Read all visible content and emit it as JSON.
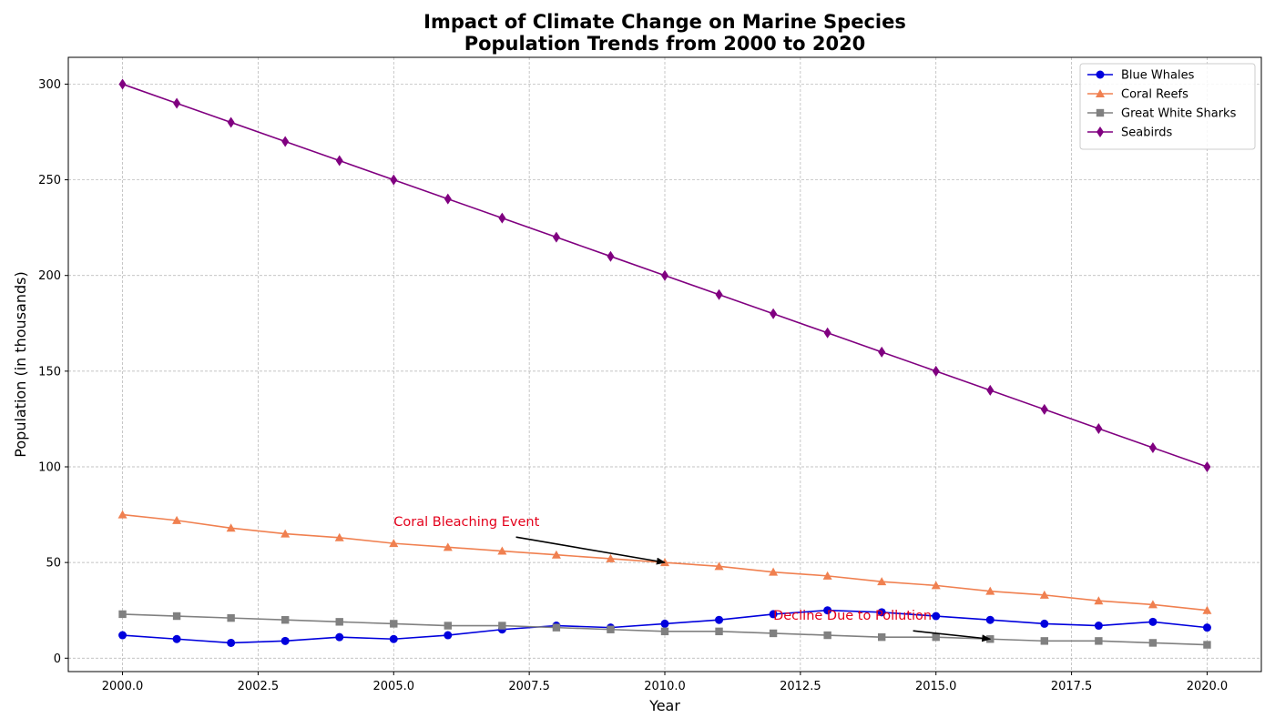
{
  "chart_data": {
    "type": "line",
    "title": "Impact of Climate Change on Marine Species\nPopulation Trends from 2000 to 2020",
    "xlabel": "Year",
    "ylabel": "Population (in thousands)",
    "xlim": [
      1999,
      2021
    ],
    "ylim": [
      -7,
      314
    ],
    "xticks": [
      2000,
      2002.5,
      2005,
      2007.5,
      2010,
      2012.5,
      2015,
      2017.5,
      2020
    ],
    "xtick_labels": [
      "2000.0",
      "2002.5",
      "2005.0",
      "2007.5",
      "2010.0",
      "2012.5",
      "2015.0",
      "2017.5",
      "2020.0"
    ],
    "yticks": [
      0,
      50,
      100,
      150,
      200,
      250,
      300
    ],
    "ytick_labels": [
      "0",
      "50",
      "100",
      "150",
      "200",
      "250",
      "300"
    ],
    "grid": true,
    "legend_position": "top-right",
    "x": [
      2000,
      2001,
      2002,
      2003,
      2004,
      2005,
      2006,
      2007,
      2008,
      2009,
      2010,
      2011,
      2012,
      2013,
      2014,
      2015,
      2016,
      2017,
      2018,
      2019,
      2020
    ],
    "series": [
      {
        "name": "Blue Whales",
        "color": "#0000dd",
        "marker": "circle",
        "values": [
          12,
          10,
          8,
          9,
          11,
          10,
          12,
          15,
          17,
          16,
          18,
          20,
          23,
          25,
          24,
          22,
          20,
          18,
          17,
          19,
          16
        ]
      },
      {
        "name": "Coral Reefs",
        "color": "#f08050",
        "marker": "triangle",
        "values": [
          75,
          72,
          68,
          65,
          63,
          60,
          58,
          56,
          54,
          52,
          50,
          48,
          45,
          43,
          40,
          38,
          35,
          33,
          30,
          28,
          25
        ]
      },
      {
        "name": "Great White Sharks",
        "color": "#808080",
        "marker": "square",
        "values": [
          23,
          22,
          21,
          20,
          19,
          18,
          17,
          17,
          16,
          15,
          14,
          14,
          13,
          12,
          11,
          11,
          10,
          9,
          9,
          8,
          7
        ]
      },
      {
        "name": "Seabirds",
        "color": "#800080",
        "marker": "diamond",
        "values": [
          300,
          290,
          280,
          270,
          260,
          250,
          240,
          230,
          220,
          210,
          200,
          190,
          180,
          170,
          160,
          150,
          140,
          130,
          120,
          110,
          100
        ]
      }
    ],
    "annotations": [
      {
        "text": "Coral Bleaching Event",
        "text_x": 2005,
        "text_y": 69,
        "point_x": 2010,
        "point_y": 50,
        "color": "#e3001b"
      },
      {
        "text": "Decline Due to Pollution",
        "text_x": 2012,
        "text_y": 20,
        "point_x": 2016,
        "point_y": 10,
        "color": "#e3001b"
      }
    ]
  }
}
